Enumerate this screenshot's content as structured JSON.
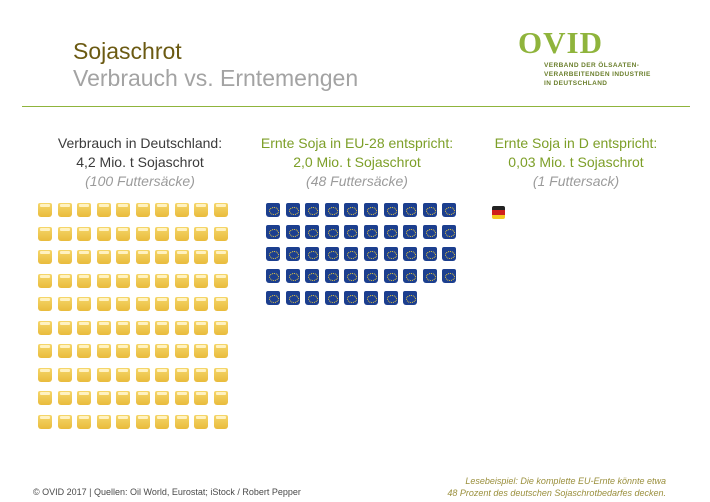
{
  "slide": {
    "title": "Sojaschrot",
    "subtitle": "Verbrauch vs. Erntemengen"
  },
  "logo": {
    "word": "OVID",
    "line1": "VERBAND DER ÖLSAATEN-",
    "line2": "VERARBEITENDEN INDUSTRIE",
    "line3": "IN DEUTSCHLAND",
    "color": "#8fb43c"
  },
  "columns": [
    {
      "heading": "Verbrauch in Deutschland:",
      "amount": "4,2 Mio. t Sojaschrot",
      "sacks": "(100 Futtersäcke)",
      "sack_count": 100,
      "sack_icon": "gold-sack-icon",
      "color": "#e9bb3c"
    },
    {
      "heading": "Ernte Soja in EU-28 entspricht:",
      "amount": "2,0 Mio. t Sojaschrot",
      "sacks": "(48 Futtersäcke)",
      "sack_count": 48,
      "sack_icon": "eu-flag-sack-icon",
      "color": "#1c3f8f"
    },
    {
      "heading": "Ernte Soja in D entspricht:",
      "amount": "0,03 Mio. t Sojaschrot",
      "sacks": "(1 Futtersack)",
      "sack_count": 1,
      "sack_icon": "german-flag-sack-icon",
      "color": "#d0201c"
    }
  ],
  "footer": {
    "source": "© OVID 2017  |  Quellen: Oil World, Eurostat; iStock / Robert Pepper",
    "note_line1": "Lesebeispiel: Die komplette EU-Ernte könnte etwa",
    "note_line2": "48 Prozent des deutschen Sojaschrotbedarfes decken."
  }
}
